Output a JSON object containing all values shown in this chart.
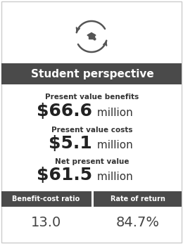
{
  "title": "Student perspective",
  "title_bg": "#4a4a4a",
  "title_color": "#ffffff",
  "title_fontsize": 11,
  "bg_color": "#ffffff",
  "border_color": "#cccccc",
  "label1": "Present value benefits",
  "value1": "$66.6",
  "unit1": " million",
  "label2": "Present value costs",
  "value2": "$5.1",
  "unit2": " million",
  "label3": "Net present value",
  "value3": "$61.5",
  "unit3": " million",
  "metric1_label": "Benefit-cost ratio",
  "metric1_value": "13.0",
  "metric2_label": "Rate of return",
  "metric2_value": "84.7%",
  "metric_bg": "#4a4a4a",
  "metric_label_color": "#ffffff",
  "metric_value_color": "#444444",
  "label_fontsize": 7.5,
  "value_fontsize": 18,
  "unit_fontsize": 11,
  "metric_label_fontsize": 7,
  "metric_value_fontsize": 14
}
